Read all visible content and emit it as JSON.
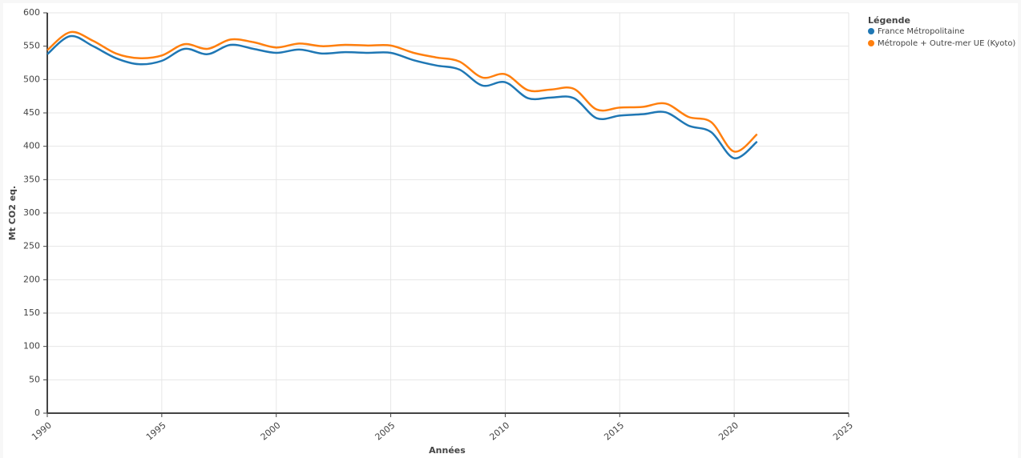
{
  "chart_data": {
    "type": "line",
    "x": [
      1990,
      1991,
      1992,
      1993,
      1994,
      1995,
      1996,
      1997,
      1998,
      1999,
      2000,
      2001,
      2002,
      2003,
      2004,
      2005,
      2006,
      2007,
      2008,
      2009,
      2010,
      2011,
      2012,
      2013,
      2014,
      2015,
      2016,
      2017,
      2018,
      2019,
      2020,
      2021
    ],
    "series": [
      {
        "name": "France Métropolitaine",
        "color": "#1f77b4",
        "values": [
          538,
          565,
          550,
          532,
          523,
          528,
          546,
          538,
          552,
          546,
          540,
          545,
          539,
          541,
          540,
          540,
          529,
          521,
          515,
          491,
          496,
          472,
          473,
          472,
          442,
          446,
          448,
          451,
          431,
          421,
          382,
          407
        ]
      },
      {
        "name": "Métropole + Outre-mer UE (Kyoto)",
        "color": "#ff7f0e",
        "values": [
          544,
          571,
          558,
          539,
          532,
          536,
          553,
          546,
          560,
          556,
          548,
          554,
          550,
          552,
          551,
          551,
          540,
          533,
          527,
          503,
          508,
          484,
          485,
          486,
          455,
          458,
          459,
          464,
          444,
          436,
          392,
          418
        ]
      }
    ],
    "xlim": [
      1990,
      2025
    ],
    "xticks": [
      1990,
      1995,
      2000,
      2005,
      2010,
      2015,
      2020,
      2025
    ],
    "ylim": [
      0,
      600
    ],
    "yticks": [
      0,
      50,
      100,
      150,
      200,
      250,
      300,
      350,
      400,
      450,
      500,
      550,
      600
    ],
    "xlabel": "Années",
    "ylabel": "Mt CO2 eq.",
    "legend_title": "Légende",
    "grid": true
  }
}
